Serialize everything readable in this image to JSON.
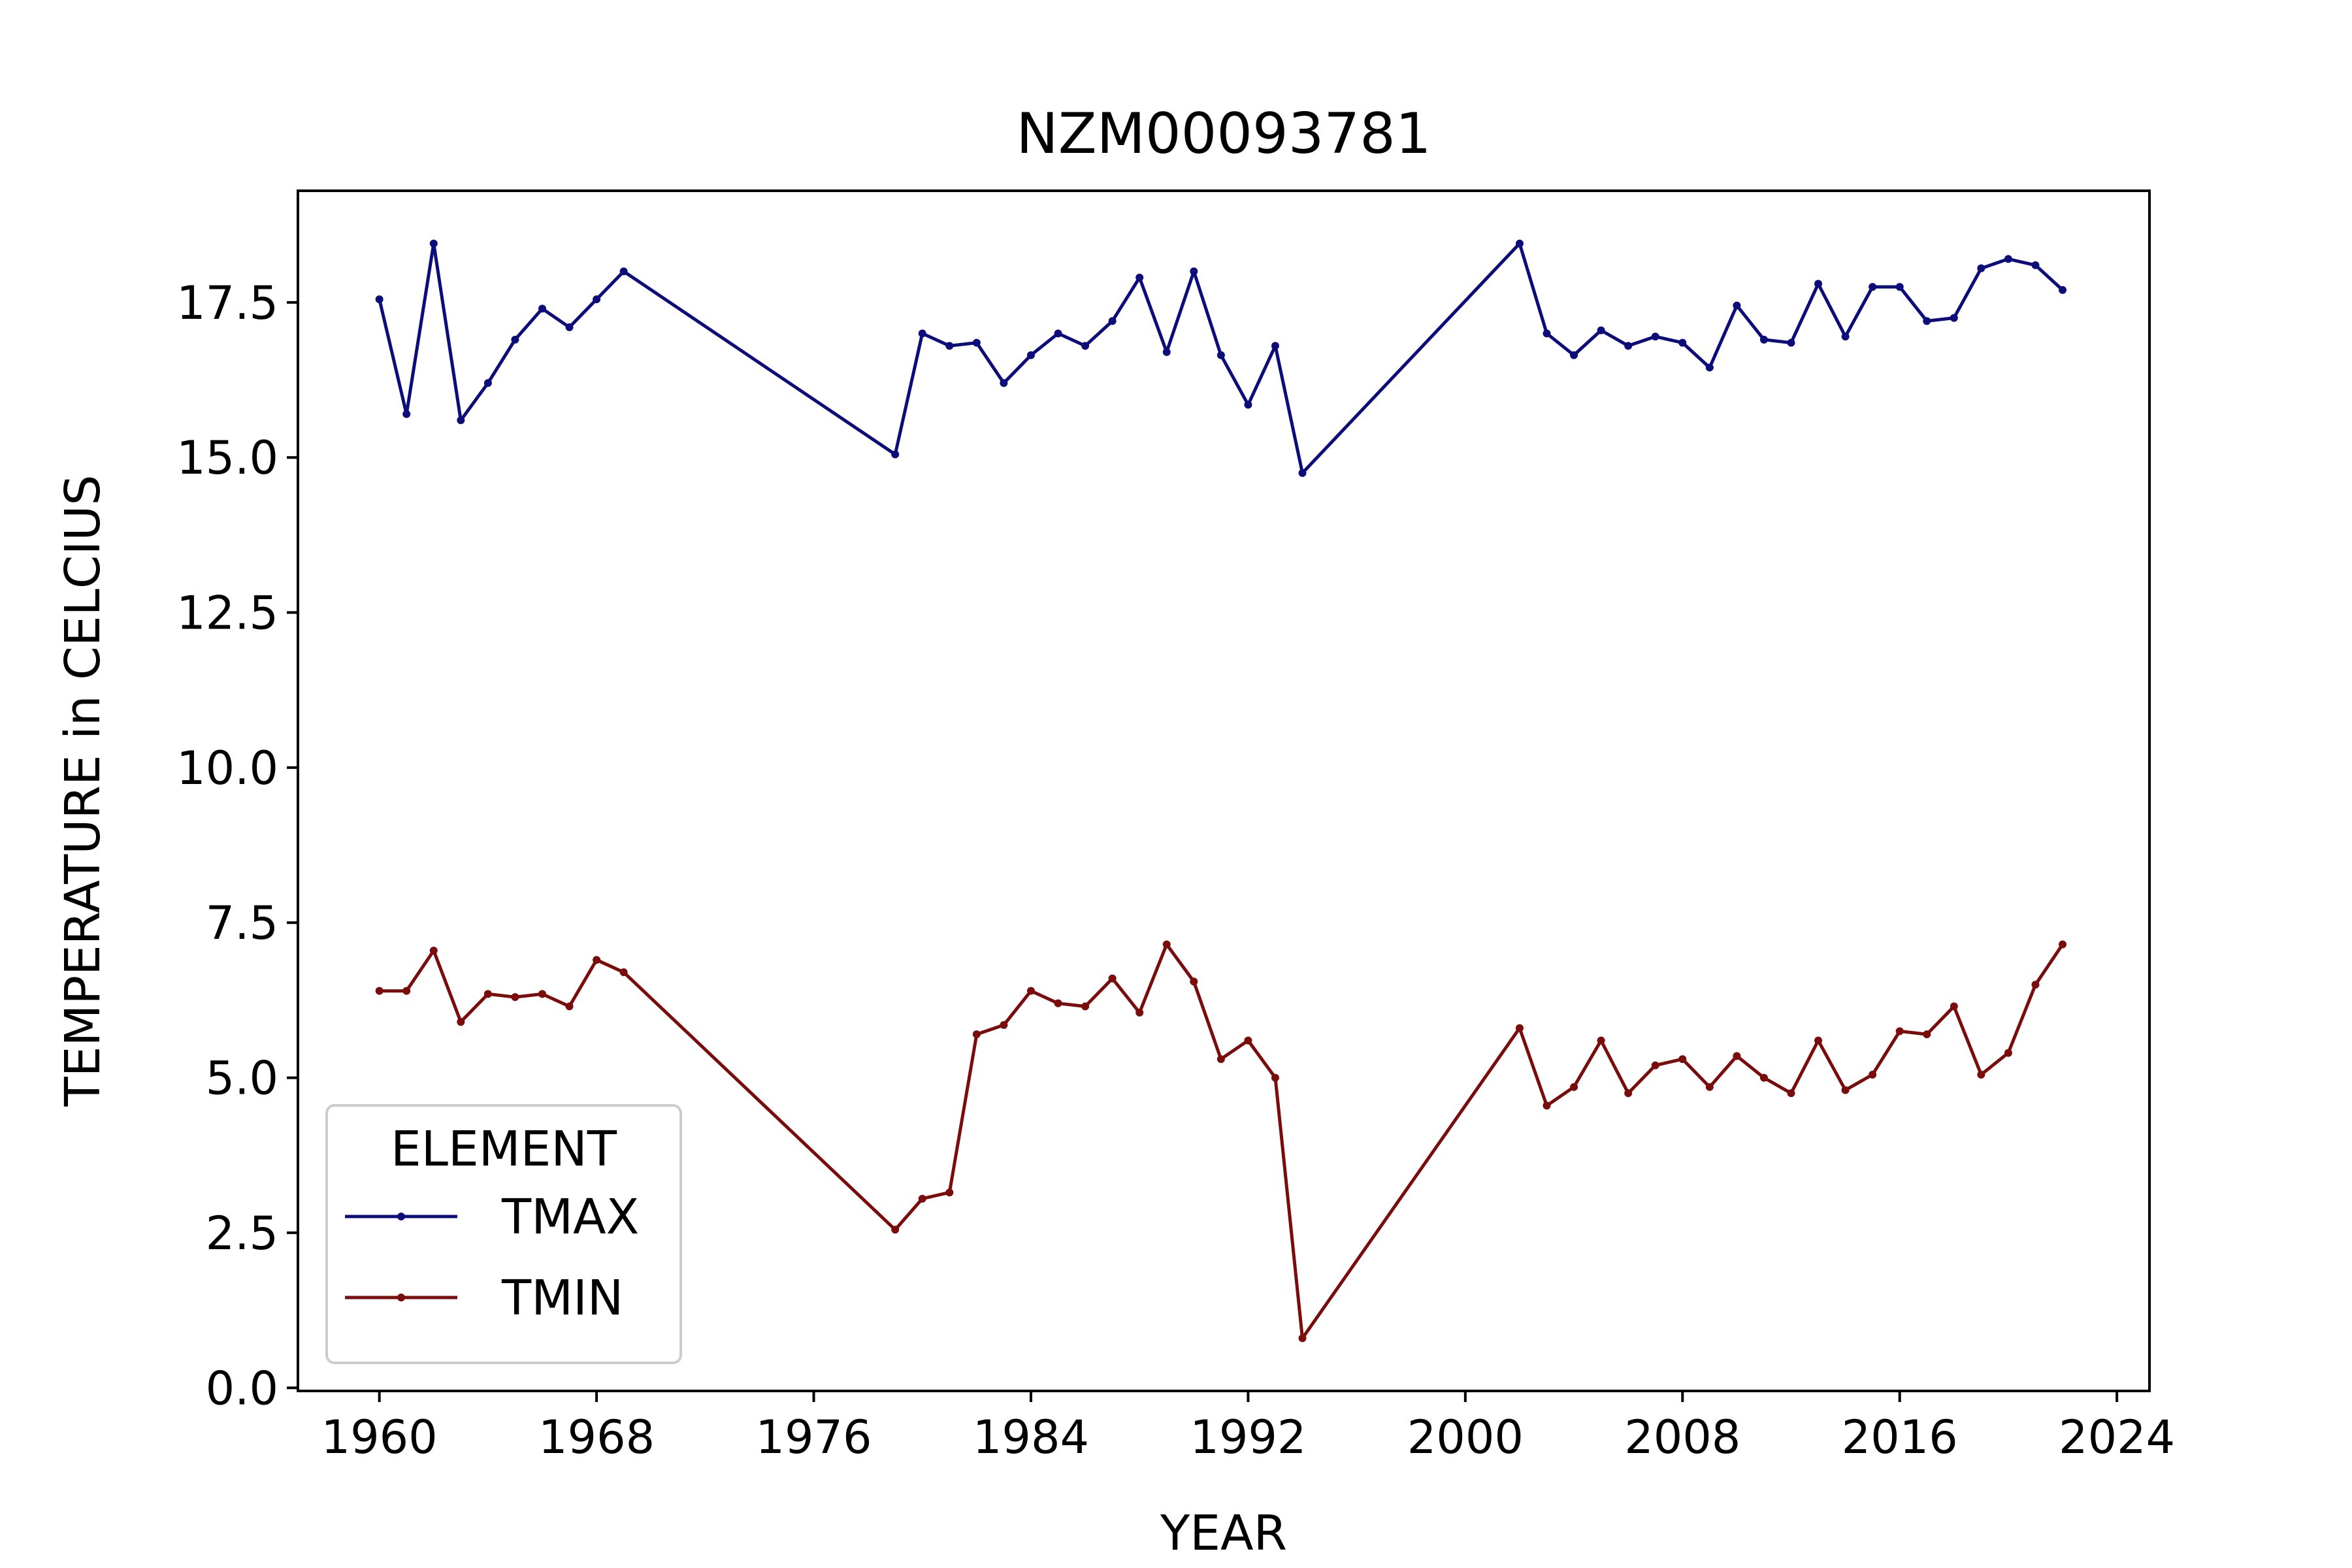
{
  "chart_data": {
    "type": "line",
    "title": "NZM00093781",
    "xlabel": "YEAR",
    "ylabel": "TEMPERATURE in CELCIUS",
    "xlim": [
      1957,
      2025.2
    ],
    "ylim": [
      -0.05,
      19.3
    ],
    "x_ticks": [
      1960,
      1968,
      1976,
      1984,
      1992,
      2000,
      2008,
      2016,
      2024
    ],
    "y_ticks": [
      0.0,
      2.5,
      5.0,
      7.5,
      10.0,
      12.5,
      15.0,
      17.5
    ],
    "x_tick_labels": [
      "1960",
      "1968",
      "1976",
      "1984",
      "1992",
      "2000",
      "2008",
      "2016",
      "2024"
    ],
    "y_tick_labels": [
      "0.0",
      "2.5",
      "5.0",
      "7.5",
      "10.0",
      "12.5",
      "15.0",
      "17.5"
    ],
    "grid": false,
    "legend": {
      "title": "ELEMENT",
      "placement": "lower-left"
    },
    "series": [
      {
        "name": "TMAX",
        "color": "#0c0c7a",
        "points": [
          [
            1960,
            17.55
          ],
          [
            1961,
            15.7
          ],
          [
            1962,
            18.45
          ],
          [
            1963,
            15.6
          ],
          [
            1964,
            16.2
          ],
          [
            1965,
            16.9
          ],
          [
            1966,
            17.4
          ],
          [
            1967,
            17.1
          ],
          [
            1968,
            17.55
          ],
          [
            1969,
            18.0
          ],
          [
            1979,
            15.05
          ],
          [
            1980,
            17.0
          ],
          [
            1981,
            16.8
          ],
          [
            1982,
            16.85
          ],
          [
            1983,
            16.2
          ],
          [
            1984,
            16.65
          ],
          [
            1985,
            17.0
          ],
          [
            1986,
            16.8
          ],
          [
            1987,
            17.2
          ],
          [
            1988,
            17.9
          ],
          [
            1989,
            16.7
          ],
          [
            1990,
            18.0
          ],
          [
            1991,
            16.65
          ],
          [
            1992,
            15.85
          ],
          [
            1993,
            16.8
          ],
          [
            1994,
            14.75
          ],
          [
            2002,
            18.45
          ],
          [
            2003,
            17.0
          ],
          [
            2004,
            16.65
          ],
          [
            2005,
            17.05
          ],
          [
            2006,
            16.8
          ],
          [
            2007,
            16.95
          ],
          [
            2008,
            16.85
          ],
          [
            2009,
            16.45
          ],
          [
            2010,
            17.45
          ],
          [
            2011,
            16.9
          ],
          [
            2012,
            16.85
          ],
          [
            2013,
            17.8
          ],
          [
            2014,
            16.95
          ],
          [
            2015,
            17.75
          ],
          [
            2016,
            17.75
          ],
          [
            2017,
            17.2
          ],
          [
            2018,
            17.25
          ],
          [
            2019,
            18.05
          ],
          [
            2020,
            18.2
          ],
          [
            2021,
            18.1
          ],
          [
            2022,
            17.7
          ]
        ]
      },
      {
        "name": "TMIN",
        "color": "#7a0c0c",
        "points": [
          [
            1960,
            6.4
          ],
          [
            1961,
            6.4
          ],
          [
            1962,
            7.05
          ],
          [
            1963,
            5.9
          ],
          [
            1964,
            6.35
          ],
          [
            1965,
            6.3
          ],
          [
            1966,
            6.35
          ],
          [
            1967,
            6.15
          ],
          [
            1968,
            6.9
          ],
          [
            1969,
            6.7
          ],
          [
            1979,
            2.55
          ],
          [
            1980,
            3.05
          ],
          [
            1981,
            3.15
          ],
          [
            1982,
            5.7
          ],
          [
            1983,
            5.85
          ],
          [
            1984,
            6.4
          ],
          [
            1985,
            6.2
          ],
          [
            1986,
            6.15
          ],
          [
            1987,
            6.6
          ],
          [
            1988,
            6.05
          ],
          [
            1989,
            7.15
          ],
          [
            1990,
            6.55
          ],
          [
            1991,
            5.3
          ],
          [
            1992,
            5.6
          ],
          [
            1993,
            5.0
          ],
          [
            1994,
            0.8
          ],
          [
            2002,
            5.8
          ],
          [
            2003,
            4.55
          ],
          [
            2004,
            4.85
          ],
          [
            2005,
            5.6
          ],
          [
            2006,
            4.75
          ],
          [
            2007,
            5.2
          ],
          [
            2008,
            5.3
          ],
          [
            2009,
            4.85
          ],
          [
            2010,
            5.35
          ],
          [
            2011,
            5.0
          ],
          [
            2012,
            4.75
          ],
          [
            2013,
            5.6
          ],
          [
            2014,
            4.8
          ],
          [
            2015,
            5.05
          ],
          [
            2016,
            5.75
          ],
          [
            2017,
            5.7
          ],
          [
            2018,
            6.15
          ],
          [
            2019,
            5.05
          ],
          [
            2020,
            5.4
          ],
          [
            2021,
            6.5
          ],
          [
            2022,
            7.15
          ]
        ]
      }
    ]
  }
}
